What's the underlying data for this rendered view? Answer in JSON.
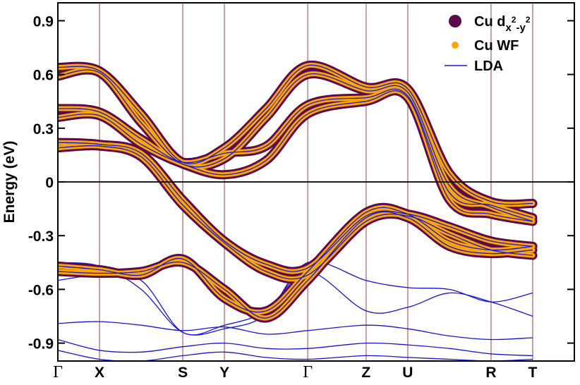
{
  "chart_data": {
    "type": "line",
    "ylabel": "Energy (eV)",
    "ylim": [
      -1.0,
      1.0
    ],
    "yticks": [
      {
        "value": 0.9,
        "label": "0.9"
      },
      {
        "value": 0.6,
        "label": "0.6"
      },
      {
        "value": 0.3,
        "label": "0.3"
      },
      {
        "value": 0.0,
        "label": "0"
      },
      {
        "value": -0.3,
        "label": "-0.3"
      },
      {
        "value": -0.6,
        "label": "-0.6"
      },
      {
        "value": -0.9,
        "label": "-0.9"
      }
    ],
    "xlim": [
      0,
      12.4
    ],
    "kpoints": [
      {
        "label": "Γ",
        "x": 0
      },
      {
        "label": "X",
        "x": 1
      },
      {
        "label": "S",
        "x": 3
      },
      {
        "label": "Y",
        "x": 4
      },
      {
        "label": "Γ",
        "x": 6
      },
      {
        "label": "Z",
        "x": 7.4
      },
      {
        "label": "U",
        "x": 8.4
      },
      {
        "label": "R",
        "x": 10.4
      },
      {
        "label": "T",
        "x": 11.4
      }
    ],
    "zero_line": 0,
    "legend": {
      "placement": "top-right",
      "entries": [
        {
          "label": "Cu d",
          "sub": "x",
          "sup1": "2",
          "sub2": "-y",
          "sup2": "2",
          "symbol": "large-circle"
        },
        {
          "label": "Cu WF",
          "symbol": "small-circle"
        },
        {
          "label": "LDA",
          "symbol": "line"
        }
      ]
    },
    "colors": {
      "dweight": "#5c0a4e",
      "wf": "#ffa500",
      "lda": "#1515d6",
      "kline": "#c4a0a4",
      "axis": "#000000"
    },
    "series": [
      {
        "name": "Cu d x2-y2 band 1",
        "kind": "cu-d",
        "points": [
          [
            0,
            0.64
          ],
          [
            1,
            0.62
          ],
          [
            2,
            0.38
          ],
          [
            3,
            0.11
          ],
          [
            4,
            0.19
          ],
          [
            5,
            0.41
          ],
          [
            6,
            0.65
          ],
          [
            7.4,
            0.53
          ],
          [
            8.4,
            0.52
          ],
          [
            9.4,
            0.05
          ],
          [
            10.4,
            -0.11
          ],
          [
            11.4,
            -0.12
          ]
        ]
      },
      {
        "name": "Cu d x2-y2 band 2",
        "kind": "cu-d",
        "points": [
          [
            0,
            0.59
          ],
          [
            1,
            0.61
          ],
          [
            2,
            0.33
          ],
          [
            3,
            0.1
          ],
          [
            4,
            0.13
          ],
          [
            5,
            0.36
          ],
          [
            6,
            0.6
          ],
          [
            7.4,
            0.51
          ],
          [
            8.4,
            0.5
          ],
          [
            9.4,
            -0.02
          ],
          [
            10.4,
            -0.14
          ],
          [
            11.4,
            -0.22
          ]
        ]
      },
      {
        "name": "Cu d x2-y2 band 3",
        "kind": "cu-d",
        "points": [
          [
            0,
            0.41
          ],
          [
            1,
            0.39
          ],
          [
            2,
            0.24
          ],
          [
            3,
            0.11
          ],
          [
            4,
            0.16
          ],
          [
            5,
            0.2
          ],
          [
            6,
            0.43
          ],
          [
            7.4,
            0.47
          ],
          [
            8.4,
            0.48
          ],
          [
            9.4,
            -0.06
          ],
          [
            10.4,
            -0.13
          ],
          [
            11.4,
            -0.2
          ]
        ]
      },
      {
        "name": "Cu d x2-y2 band 4",
        "kind": "cu-d",
        "points": [
          [
            0,
            0.36
          ],
          [
            1,
            0.37
          ],
          [
            2,
            0.21
          ],
          [
            3,
            0.1
          ],
          [
            4,
            0.04
          ],
          [
            5,
            0.12
          ],
          [
            6,
            0.38
          ],
          [
            7.4,
            0.45
          ],
          [
            8.4,
            0.47
          ],
          [
            9.4,
            -0.1
          ],
          [
            10.4,
            -0.18
          ],
          [
            11.4,
            -0.22
          ]
        ]
      },
      {
        "name": "Cu d x2-y2 band 5",
        "kind": "cu-d",
        "points": [
          [
            0,
            0.22
          ],
          [
            1,
            0.21
          ],
          [
            2,
            0.16
          ],
          [
            3,
            -0.1
          ],
          [
            4,
            -0.33
          ],
          [
            5,
            -0.46
          ],
          [
            6,
            -0.48
          ],
          [
            7.4,
            -0.19
          ],
          [
            8.4,
            -0.18
          ],
          [
            9.4,
            -0.25
          ],
          [
            10.4,
            -0.33
          ],
          [
            11.4,
            -0.36
          ]
        ]
      },
      {
        "name": "Cu d x2-y2 band 6",
        "kind": "cu-d",
        "points": [
          [
            0,
            0.19
          ],
          [
            1,
            0.2
          ],
          [
            2,
            0.14
          ],
          [
            3,
            -0.13
          ],
          [
            4,
            -0.34
          ],
          [
            5,
            -0.5
          ],
          [
            6,
            -0.52
          ],
          [
            7.4,
            -0.22
          ],
          [
            8.4,
            -0.19
          ],
          [
            9.4,
            -0.29
          ],
          [
            10.4,
            -0.38
          ],
          [
            11.4,
            -0.41
          ]
        ]
      },
      {
        "name": "Cu d x2-y2 band 7",
        "kind": "cu-d",
        "points": [
          [
            0,
            -0.47
          ],
          [
            1,
            -0.49
          ],
          [
            2,
            -0.52
          ],
          [
            3,
            -0.43
          ],
          [
            4,
            -0.65
          ],
          [
            5,
            -0.72
          ],
          [
            6,
            -0.5
          ],
          [
            7.4,
            -0.17
          ],
          [
            8.4,
            -0.18
          ],
          [
            9.4,
            -0.33
          ],
          [
            10.4,
            -0.38
          ],
          [
            11.4,
            -0.36
          ]
        ]
      },
      {
        "name": "Cu d x2-y2 band 8",
        "kind": "cu-d",
        "points": [
          [
            0,
            -0.5
          ],
          [
            1,
            -0.51
          ],
          [
            2,
            -0.5
          ],
          [
            3,
            -0.45
          ],
          [
            4,
            -0.6
          ],
          [
            5,
            -0.76
          ],
          [
            6,
            -0.55
          ],
          [
            7.4,
            -0.2
          ],
          [
            8.4,
            -0.2
          ],
          [
            9.4,
            -0.36
          ],
          [
            10.4,
            -0.4
          ],
          [
            11.4,
            -0.38
          ]
        ]
      },
      {
        "name": "LDA band 1",
        "kind": "lda",
        "points": [
          [
            0,
            -0.45
          ],
          [
            1,
            -0.47
          ],
          [
            2,
            -0.6
          ],
          [
            3,
            -0.84
          ],
          [
            4,
            -0.82
          ],
          [
            5,
            -0.74
          ],
          [
            6,
            -0.45
          ],
          [
            7.4,
            -0.55
          ],
          [
            8.4,
            -0.59
          ],
          [
            9.4,
            -0.6
          ],
          [
            10.4,
            -0.67
          ],
          [
            11.4,
            -0.62
          ]
        ]
      },
      {
        "name": "LDA band 2",
        "kind": "lda",
        "points": [
          [
            0,
            -0.55
          ],
          [
            1,
            -0.52
          ],
          [
            2,
            -0.55
          ],
          [
            3,
            -0.84
          ],
          [
            4,
            -0.8
          ],
          [
            5,
            -0.72
          ],
          [
            6,
            -0.5
          ],
          [
            7.4,
            -0.72
          ],
          [
            8.4,
            -0.7
          ],
          [
            9.4,
            -0.62
          ],
          [
            10.4,
            -0.67
          ],
          [
            11.4,
            -0.75
          ]
        ]
      },
      {
        "name": "LDA band 3",
        "kind": "lda",
        "points": [
          [
            0,
            -0.79
          ],
          [
            1,
            -0.78
          ],
          [
            2,
            -0.8
          ],
          [
            3,
            -0.83
          ],
          [
            4,
            -0.81
          ],
          [
            5,
            -0.85
          ],
          [
            6,
            -0.83
          ],
          [
            7.4,
            -0.8
          ],
          [
            8.4,
            -0.82
          ],
          [
            9.4,
            -0.86
          ],
          [
            10.4,
            -0.88
          ],
          [
            11.4,
            -0.87
          ]
        ]
      },
      {
        "name": "LDA band 4",
        "kind": "lda",
        "points": [
          [
            0,
            -0.88
          ],
          [
            1,
            -0.94
          ],
          [
            2,
            -0.95
          ],
          [
            3,
            -0.92
          ],
          [
            4,
            -0.9
          ],
          [
            5,
            -0.93
          ],
          [
            6,
            -0.93
          ],
          [
            7.4,
            -0.9
          ],
          [
            8.4,
            -0.91
          ],
          [
            9.4,
            -0.93
          ],
          [
            10.4,
            -0.96
          ],
          [
            11.4,
            -0.97
          ]
        ]
      },
      {
        "name": "LDA band 5",
        "kind": "lda",
        "points": [
          [
            0,
            -0.94
          ],
          [
            1,
            -0.99
          ],
          [
            2,
            -1.0
          ],
          [
            3,
            -0.97
          ],
          [
            4,
            -0.95
          ],
          [
            5,
            -0.98
          ],
          [
            6,
            -0.99
          ],
          [
            7.4,
            -0.97
          ],
          [
            8.4,
            -0.98
          ],
          [
            9.4,
            -0.99
          ],
          [
            10.4,
            -1.0
          ],
          [
            11.4,
            -0.99
          ]
        ]
      }
    ]
  }
}
